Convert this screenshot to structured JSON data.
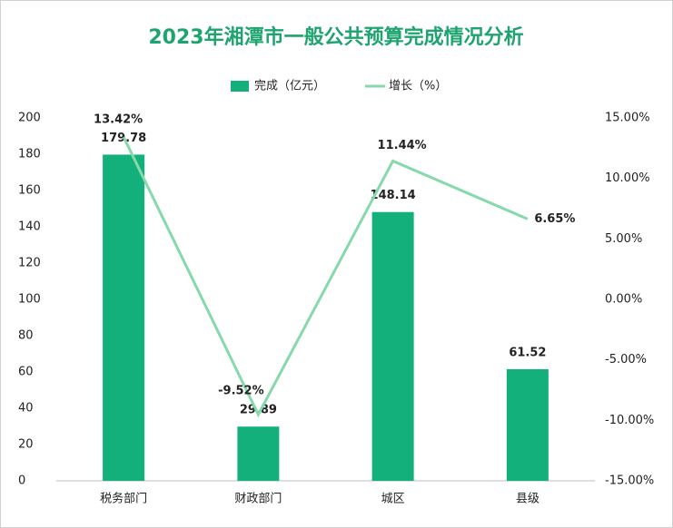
{
  "chart_data": {
    "type": "bar",
    "title": "2023年湘潭市一般公共预算完成情况分析",
    "categories": [
      "税务部门",
      "财政部门",
      "城区",
      "县级"
    ],
    "series": [
      {
        "name": "完成（亿元）",
        "color": "#13b07b",
        "values": [
          179.78,
          29.89,
          148.14,
          61.52
        ]
      },
      {
        "name": "增长（%）",
        "color": "#86d9ab",
        "axis": "y2",
        "values": [
          13.42,
          -9.52,
          11.44,
          6.65
        ],
        "value_labels": [
          "13.42%",
          "-9.52%",
          "11.44%",
          "6.65%"
        ]
      }
    ],
    "ylim": [
      0,
      200
    ],
    "yticks": [
      0,
      20,
      40,
      60,
      80,
      100,
      120,
      140,
      160,
      180,
      200
    ],
    "y2lim": [
      -15,
      15
    ],
    "y2ticks": [
      {
        "value": -15,
        "label": "-15.00%"
      },
      {
        "value": -10,
        "label": "-10.00%"
      },
      {
        "value": -5,
        "label": "-5.00%"
      },
      {
        "value": 0,
        "label": "0.00%"
      },
      {
        "value": 5,
        "label": "5.00%"
      },
      {
        "value": 10,
        "label": "10.00%"
      },
      {
        "value": 15,
        "label": "15.00%"
      }
    ],
    "legend": "top"
  }
}
